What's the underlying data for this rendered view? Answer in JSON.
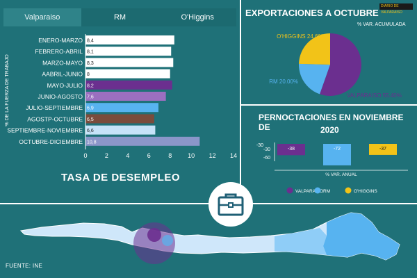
{
  "tabs": [
    "Valparaiso",
    "RM",
    "O'Higgins"
  ],
  "unemployment_title": "TASA DE DESEMPLEO",
  "exports_title": "EXPORTACIONES A OCTUBRE",
  "exports_subtitle": "% VAR. ACUMULADA",
  "overnight_title_l1": "PERNOCTACIONES EN NOVIEMBRE DE",
  "overnight_title_l2": "2020",
  "source": "FUENTE: INE",
  "logo_text": "DIARIO DE VALPARAISO",
  "icons": [
    "briefcase-icon",
    "chile-map"
  ],
  "chart_data": [
    {
      "type": "bar",
      "orientation": "horizontal",
      "ylabel": "% DE LA FUERZA DE TRABAJO",
      "categories": [
        "ENERO-MARZO",
        "FEBRERO-ABRIL",
        "MARZO-MAYO",
        "AABRIL-JUNIO",
        "MAYO-JULIO",
        "JUNIO-AGOSTO",
        "JULIO-SEPTIEMBRE",
        "AGOSTP-OCTUBRE",
        "SEPTIEMBRE-NOVIEMBRE",
        "OCTUBRE-DICIEMBRE"
      ],
      "values": [
        8.4,
        8.1,
        8.3,
        8.0,
        8.2,
        7.6,
        6.9,
        6.5,
        6.6,
        10.8
      ],
      "value_labels": [
        "8,4",
        "8,1",
        "8,3",
        "8",
        "8,2",
        "7,6",
        "6,9",
        "6,5",
        "6,6",
        "10,8"
      ],
      "colors": [
        "#ffffff",
        "#ffffff",
        "#ffffff",
        "#ffffff",
        "#6b2f8f",
        "#9b6fc0",
        "#57b3f0",
        "#7a4c3c",
        "#c6e3f8",
        "#8b96c9"
      ],
      "xlim": [
        0,
        14
      ],
      "xticks": [
        "0",
        "2",
        "4",
        "6",
        "8",
        "10",
        "12",
        "14"
      ]
    },
    {
      "type": "pie",
      "labels": [
        "VALPARAISO 55.40%",
        "RM 20.00%",
        "O'HIGGINS 24.60%"
      ],
      "values": [
        55.4,
        20.0,
        24.6
      ],
      "colors": [
        "#6b2f8f",
        "#57b3f0",
        "#f2c318"
      ]
    },
    {
      "type": "bar",
      "xlabel": "% VAR. ANUAL",
      "categories": [
        "VALPARAÍSO",
        "RM",
        "O'HIGGINS"
      ],
      "values": [
        -38,
        -72,
        -37
      ],
      "colors": [
        "#6b2f8f",
        "#57b3f0",
        "#f2c318"
      ],
      "yticks": [
        "-30",
        "-60"
      ],
      "zero_label": "-30",
      "legend": [
        "VALPARAÍSO",
        "RM",
        "O'HIGGINS"
      ]
    }
  ]
}
